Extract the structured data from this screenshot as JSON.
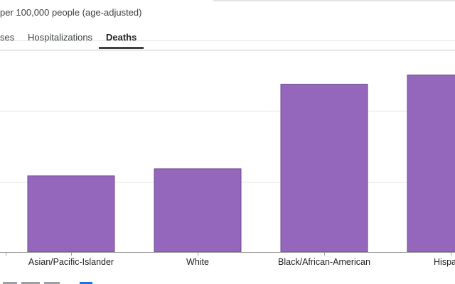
{
  "header": {
    "subtitle": "per 100,000 people (age-adjusted)"
  },
  "tabs": [
    {
      "label": "ses",
      "active": false
    },
    {
      "label": "Hospitalizations",
      "active": false
    },
    {
      "label": "Deaths",
      "active": true
    }
  ],
  "colors": {
    "bar": "#9467bd",
    "bar_stroke": "#6b4a8f",
    "grid": "#e3e3e3",
    "axis": "#9a9a9a"
  },
  "chart_data": {
    "type": "bar",
    "categories": [
      "Asian/Pacific-Islander",
      "White",
      "Black/African-American",
      "Hispanic"
    ],
    "values": [
      108,
      118,
      238,
      251
    ],
    "ylim": [
      0,
      300
    ],
    "grid": true,
    "gridlines": [
      100,
      200,
      300
    ],
    "xlabel": "",
    "ylabel": ""
  }
}
